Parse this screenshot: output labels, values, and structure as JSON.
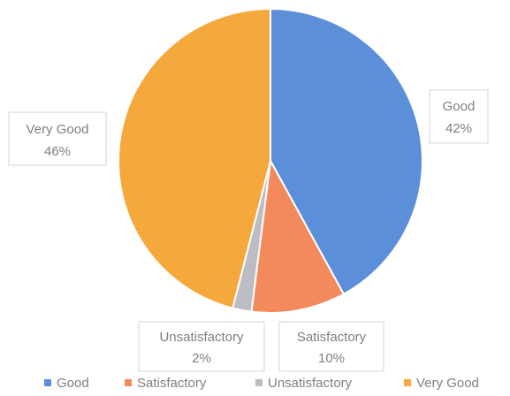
{
  "chart_data": {
    "type": "pie",
    "title": "",
    "slices": [
      {
        "label": "Good",
        "value": 42,
        "percent_label": "42%",
        "color": "#5b8fd9"
      },
      {
        "label": "Satisfactory",
        "value": 10,
        "percent_label": "10%",
        "color": "#f28a5c"
      },
      {
        "label": "Unsatisfactory",
        "value": 2,
        "percent_label": "2%",
        "color": "#bcbcc4"
      },
      {
        "label": "Very Good",
        "value": 46,
        "percent_label": "46%",
        "color": "#f5a83c"
      }
    ],
    "legend_position": "bottom",
    "start_angle_deg": 0,
    "direction": "clockwise"
  }
}
